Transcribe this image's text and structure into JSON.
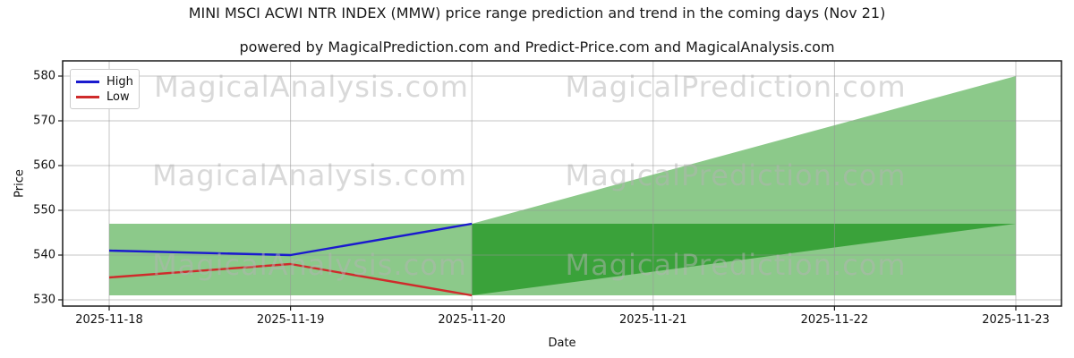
{
  "header": {
    "title": "MINI MSCI ACWI NTR INDEX (MMW) price range prediction and trend in the coming days (Nov 21)",
    "subtitle": "powered by MagicalPrediction.com and Predict-Price.com and MagicalAnalysis.com"
  },
  "watermarks": {
    "left": "MagicalAnalysis.com",
    "right": "MagicalPrediction.com"
  },
  "chart_data": {
    "type": "line",
    "xlabel": "Date",
    "ylabel": "Price",
    "categories": [
      "2025-11-18",
      "2025-11-19",
      "2025-11-20",
      "2025-11-21",
      "2025-11-22",
      "2025-11-23"
    ],
    "yticks": [
      530,
      540,
      550,
      560,
      570,
      580
    ],
    "ylim": [
      528.6,
      583.4
    ],
    "grid": true,
    "legend_position": "upper-left",
    "series": [
      {
        "name": "High",
        "color": "#1a1ace",
        "x": [
          0,
          1,
          2
        ],
        "values": [
          541,
          540,
          547
        ]
      },
      {
        "name": "Low",
        "color": "#cf2b2b",
        "x": [
          0,
          1,
          2
        ],
        "values": [
          535,
          538,
          531
        ]
      }
    ],
    "bands": [
      {
        "name": "predicted-range-band",
        "color": "#8cc98a",
        "x": [
          0,
          1,
          2,
          3,
          4,
          5
        ],
        "top": [
          547,
          547,
          547,
          558,
          569,
          580
        ],
        "bottom": [
          531,
          531,
          531,
          531,
          531,
          531
        ]
      },
      {
        "name": "trend-wedge-band",
        "color": "#3aa23a",
        "x": [
          2,
          3,
          4,
          5
        ],
        "top": [
          547,
          547,
          547,
          547
        ],
        "bottom": [
          531,
          536.3,
          541.7,
          547
        ]
      }
    ],
    "colors": {
      "grid": "#c8c8c8",
      "spine": "#1a1a1a"
    }
  }
}
